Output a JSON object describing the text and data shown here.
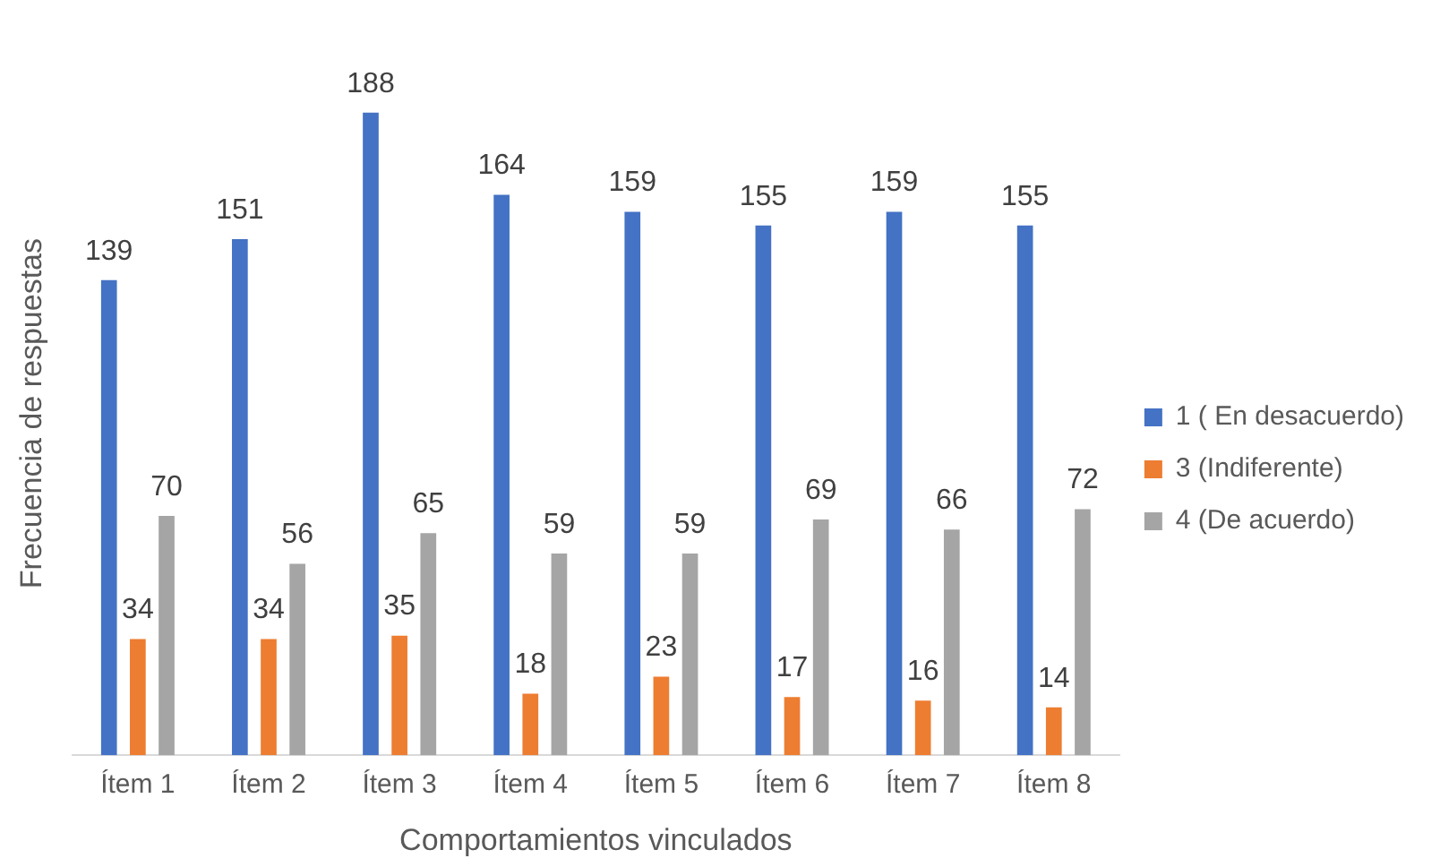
{
  "chart_data": {
    "type": "bar",
    "xlabel": "Comportamientos vinculados",
    "ylabel": "Frecuencia de respuestas",
    "categories": [
      "Ítem 1",
      "Ítem 2",
      "Ítem 3",
      "Ítem 4",
      "Ítem 5",
      "Ítem 6",
      "Ítem 7",
      "Ítem 8"
    ],
    "series": [
      {
        "name": "1 ( En desacuerdo)",
        "color": "#4472c4",
        "values": [
          139,
          151,
          188,
          164,
          159,
          155,
          159,
          155
        ]
      },
      {
        "name": "3 (Indiferente)",
        "color": "#ed7d31",
        "values": [
          34,
          34,
          35,
          18,
          23,
          17,
          16,
          14
        ]
      },
      {
        "name": "4 (De acuerdo)",
        "color": "#a5a5a5",
        "values": [
          70,
          56,
          65,
          59,
          59,
          69,
          66,
          72
        ]
      }
    ],
    "data_labels": true,
    "grid": false,
    "legend": "right"
  }
}
